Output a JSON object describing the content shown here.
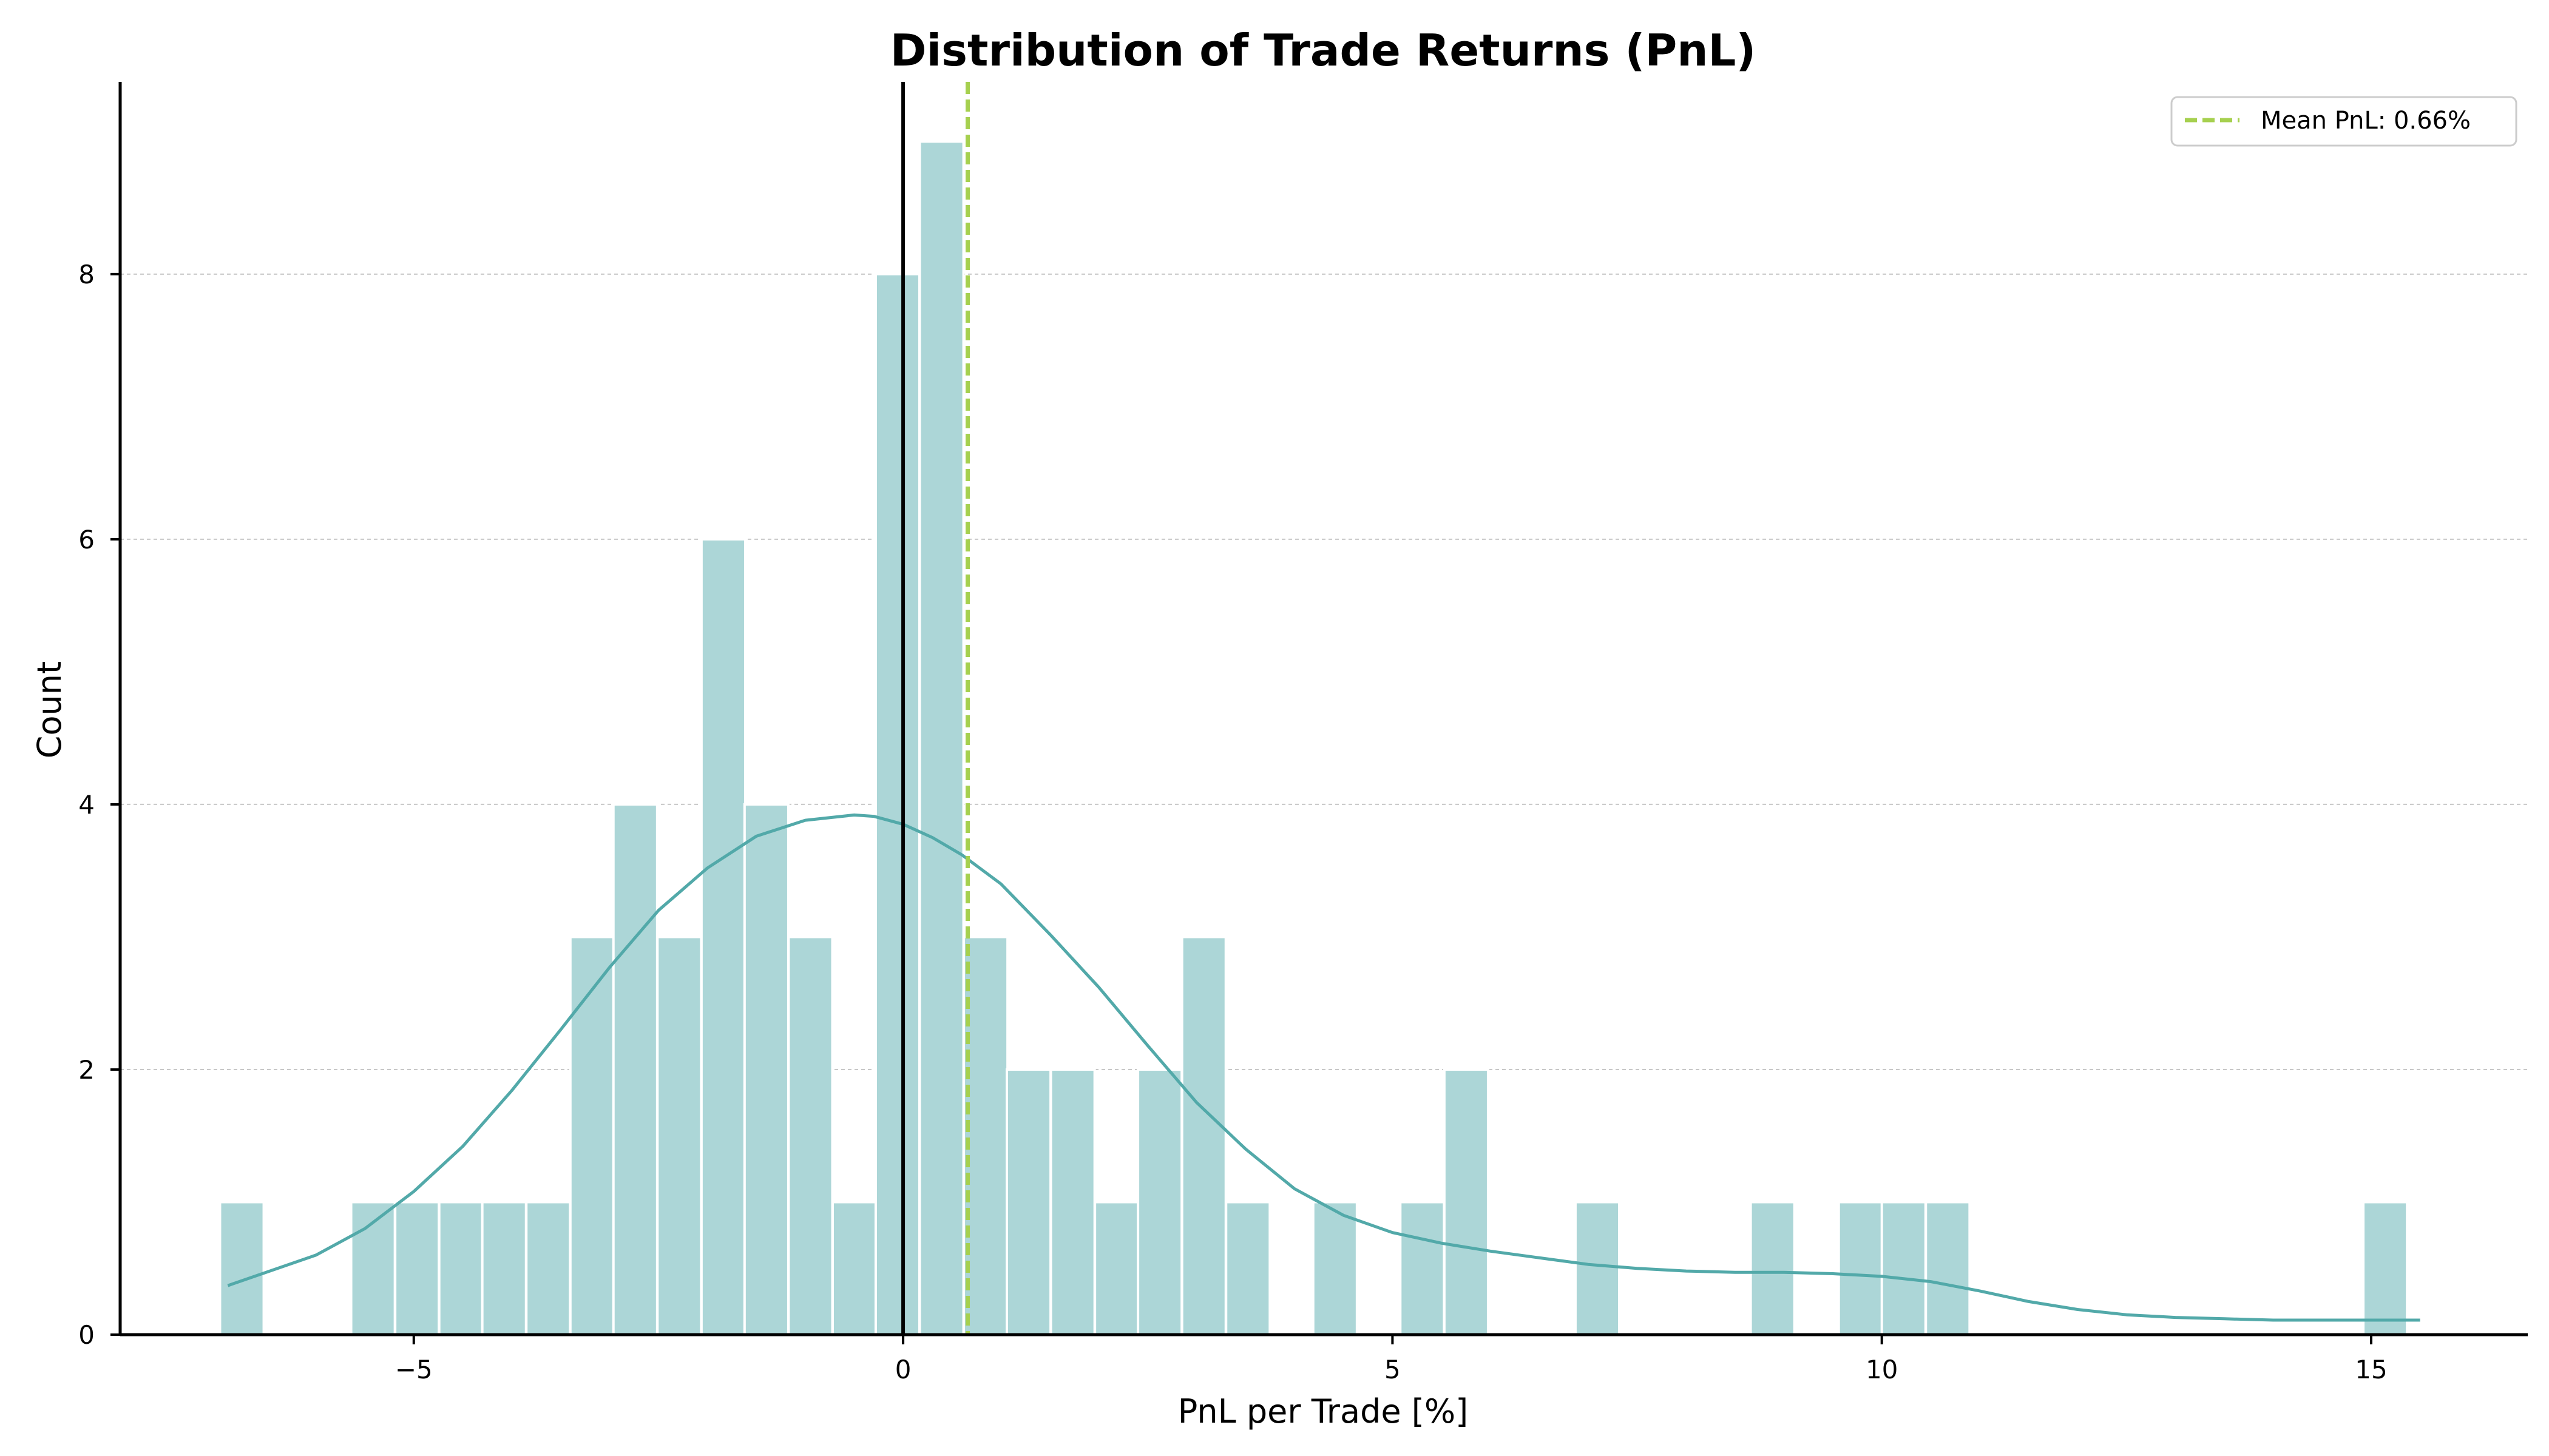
{
  "chart_data": {
    "type": "bar",
    "title": "Distribution of Trade Returns (PnL)",
    "xlabel": "PnL per Trade [%]",
    "ylabel": "Count",
    "xlim": [
      -8,
      16.6
    ],
    "ylim": [
      0,
      9.45
    ],
    "x_ticks": [
      -5,
      0,
      5,
      10,
      15
    ],
    "x_tick_labels": [
      "−5",
      "0",
      "5",
      "10",
      "15"
    ],
    "y_ticks": [
      0,
      2,
      4,
      6,
      8
    ],
    "y_tick_labels": [
      "0",
      "2",
      "4",
      "6",
      "8"
    ],
    "grid": "y-major-dashed",
    "bin_width": 0.447,
    "bins": [
      {
        "start": -6.98,
        "count": 1
      },
      {
        "start": -5.64,
        "count": 1
      },
      {
        "start": -5.19,
        "count": 1
      },
      {
        "start": -4.74,
        "count": 1
      },
      {
        "start": -4.3,
        "count": 1
      },
      {
        "start": -3.85,
        "count": 1
      },
      {
        "start": -3.4,
        "count": 3
      },
      {
        "start": -2.96,
        "count": 4
      },
      {
        "start": -2.51,
        "count": 3
      },
      {
        "start": -2.06,
        "count": 6
      },
      {
        "start": -1.62,
        "count": 4
      },
      {
        "start": -1.17,
        "count": 3
      },
      {
        "start": -0.72,
        "count": 1
      },
      {
        "start": -0.28,
        "count": 8
      },
      {
        "start": 0.17,
        "count": 9
      },
      {
        "start": 0.62,
        "count": 3
      },
      {
        "start": 1.06,
        "count": 2
      },
      {
        "start": 1.51,
        "count": 2
      },
      {
        "start": 1.96,
        "count": 1
      },
      {
        "start": 2.4,
        "count": 2
      },
      {
        "start": 2.85,
        "count": 3
      },
      {
        "start": 3.3,
        "count": 1
      },
      {
        "start": 4.19,
        "count": 1
      },
      {
        "start": 5.08,
        "count": 1
      },
      {
        "start": 5.53,
        "count": 2
      },
      {
        "start": 6.87,
        "count": 1
      },
      {
        "start": 8.66,
        "count": 1
      },
      {
        "start": 9.56,
        "count": 1
      },
      {
        "start": 10.0,
        "count": 1
      },
      {
        "start": 10.45,
        "count": 1
      },
      {
        "start": 14.92,
        "count": 1
      }
    ],
    "kde": {
      "x": [
        -6.9,
        -6.0,
        -5.5,
        -5.0,
        -4.5,
        -4.0,
        -3.5,
        -3.0,
        -2.5,
        -2.0,
        -1.5,
        -1.0,
        -0.5,
        -0.3,
        0.0,
        0.3,
        0.6,
        1.0,
        1.5,
        2.0,
        2.5,
        3.0,
        3.5,
        4.0,
        4.5,
        5.0,
        5.5,
        6.0,
        6.5,
        7.0,
        7.5,
        8.0,
        8.5,
        9.0,
        9.5,
        10.0,
        10.5,
        11.0,
        11.5,
        12.0,
        12.5,
        13.0,
        13.5,
        14.0,
        14.5,
        15.0,
        15.5
      ],
      "y": [
        0.37,
        0.6,
        0.8,
        1.08,
        1.42,
        1.84,
        2.3,
        2.77,
        3.2,
        3.52,
        3.76,
        3.88,
        3.92,
        3.91,
        3.85,
        3.75,
        3.62,
        3.4,
        3.02,
        2.62,
        2.18,
        1.75,
        1.4,
        1.1,
        0.9,
        0.77,
        0.69,
        0.63,
        0.58,
        0.53,
        0.5,
        0.48,
        0.47,
        0.47,
        0.46,
        0.44,
        0.4,
        0.33,
        0.25,
        0.19,
        0.15,
        0.13,
        0.12,
        0.11,
        0.11,
        0.11,
        0.11
      ]
    },
    "zero_line": {
      "x": 0,
      "color": "#000000"
    },
    "mean_line": {
      "x": 0.66,
      "label": "Mean PnL: 0.66%",
      "color": "#a6d04f"
    },
    "bar_color": "#acd6d7",
    "kde_color": "#52a9a9",
    "legend_position": "top-right"
  }
}
